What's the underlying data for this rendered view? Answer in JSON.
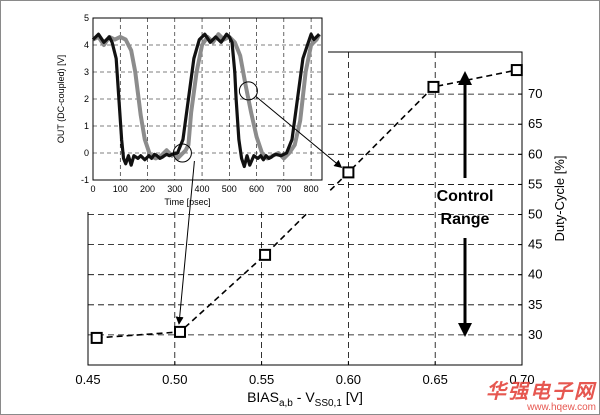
{
  "chart_data": [
    {
      "type": "line",
      "xlabel_main": "BIAS",
      "xlabel_sub1": "a,b",
      "xlabel_mid": " - V",
      "xlabel_sub2": "SS0,1",
      "xlabel_end": " [V]",
      "ylabel": "Duty-Cycle [%]",
      "xlim": [
        0.45,
        0.7
      ],
      "ylim": [
        25,
        77
      ],
      "xticks": [
        "0.45",
        "0.50",
        "0.55",
        "0.60",
        "0.65",
        "0.70"
      ],
      "yticks": [
        "30",
        "35",
        "40",
        "45",
        "50",
        "55",
        "60",
        "65",
        "70"
      ],
      "grid": true,
      "series": [
        {
          "x": [
            0.455,
            0.503,
            0.552,
            0.6,
            0.649,
            0.697
          ],
          "y": [
            29.5,
            30.5,
            43.3,
            57.0,
            71.2,
            74.0
          ]
        }
      ],
      "annotations": [
        "Control",
        "Range"
      ]
    },
    {
      "type": "line",
      "xlabel": "Time [psec]",
      "ylabel": "OUT (DC-coupled) [V]",
      "xlim": [
        0,
        840
      ],
      "ylim": [
        -1,
        5
      ],
      "xticks": [
        "0",
        "100",
        "200",
        "300",
        "400",
        "500",
        "600",
        "700",
        "800"
      ],
      "yticks": [
        "-1",
        "0",
        "1",
        "2",
        "3",
        "4",
        "5"
      ],
      "grid": true,
      "series": [
        {
          "color": "#111111",
          "x": [
            0,
            20,
            40,
            60,
            70,
            85,
            95,
            105,
            112,
            120,
            130,
            140,
            150,
            165,
            175,
            190,
            205,
            215,
            225,
            235,
            245,
            255,
            262,
            270,
            280,
            290,
            310,
            330,
            350,
            370,
            390,
            410,
            430,
            450,
            470,
            490,
            500,
            510,
            520,
            525,
            535,
            545,
            555,
            565,
            575,
            590,
            605,
            615,
            625,
            635,
            645,
            655,
            660,
            670,
            690,
            710,
            730,
            750,
            770,
            790,
            800,
            810,
            820,
            830
          ],
          "y": [
            4.2,
            4.4,
            4.1,
            4.3,
            4.1,
            3.5,
            2.0,
            0.5,
            -0.2,
            -0.4,
            -0.1,
            -0.45,
            -0.1,
            -0.2,
            -0.1,
            -0.25,
            -0.1,
            -0.2,
            -0.05,
            -0.1,
            -0.2,
            -0.15,
            -0.1,
            -0.05,
            -0.1,
            -0.05,
            0.0,
            0.5,
            2.0,
            3.5,
            4.2,
            4.4,
            4.1,
            4.3,
            4.1,
            4.4,
            4.3,
            4.1,
            3.0,
            2.0,
            0.5,
            -0.2,
            -0.5,
            -0.1,
            -0.45,
            -0.1,
            -0.2,
            -0.1,
            -0.25,
            -0.1,
            -0.2,
            -0.15,
            -0.1,
            -0.05,
            -0.1,
            0.0,
            0.5,
            2.0,
            3.5,
            4.1,
            4.4,
            4.2,
            4.3,
            4.4
          ]
        },
        {
          "color": "#8c8c8c",
          "x": [
            0,
            20,
            40,
            60,
            80,
            100,
            120,
            140,
            155,
            165,
            175,
            190,
            210,
            230,
            250,
            270,
            290,
            300,
            310,
            320,
            330,
            340,
            350,
            360,
            380,
            400,
            420,
            440,
            460,
            480,
            500,
            520,
            540,
            560,
            580,
            600,
            620,
            640,
            660,
            680,
            700,
            720,
            740,
            760,
            780,
            800,
            820,
            830
          ],
          "y": [
            4.2,
            4.3,
            4.0,
            4.3,
            4.2,
            4.3,
            4.2,
            3.8,
            3.0,
            2.2,
            1.4,
            0.5,
            -0.1,
            -0.2,
            -0.1,
            0.1,
            -0.1,
            0.0,
            -0.2,
            -0.1,
            0.0,
            0.1,
            0.3,
            1.5,
            3.0,
            4.0,
            4.3,
            4.1,
            4.4,
            4.2,
            4.3,
            4.1,
            3.6,
            2.5,
            1.5,
            0.6,
            0.0,
            -0.2,
            -0.1,
            0.0,
            -0.2,
            0.0,
            0.3,
            1.2,
            3.0,
            4.0,
            4.2,
            4.4
          ]
        }
      ]
    }
  ]
}
